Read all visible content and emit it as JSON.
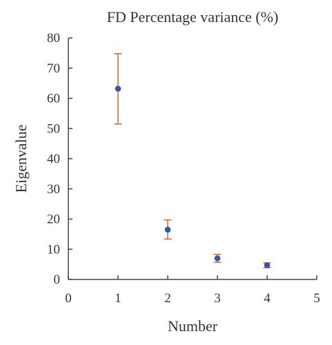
{
  "chart_data": {
    "type": "scatter",
    "title": "FD Percentage variance (%)",
    "xlabel": "Number",
    "ylabel": "Eigenvalue",
    "xlim": [
      0,
      5
    ],
    "ylim": [
      0,
      80
    ],
    "xticks": [
      "0",
      "1",
      "2",
      "3",
      "4",
      "5"
    ],
    "yticks": [
      "0",
      "10",
      "20",
      "30",
      "40",
      "50",
      "60",
      "70",
      "80"
    ],
    "grid": false,
    "series": [
      {
        "x": [
          1,
          2,
          3,
          4
        ],
        "y": [
          63.2,
          16.5,
          7.0,
          4.7
        ],
        "error_low": [
          51.5,
          13.4,
          5.7,
          3.9
        ],
        "error_high": [
          74.8,
          19.7,
          8.3,
          5.5
        ]
      }
    ],
    "colors": {
      "marker": "#2f59a8",
      "errorbar": "#d3622a",
      "axis": "#444444"
    }
  }
}
